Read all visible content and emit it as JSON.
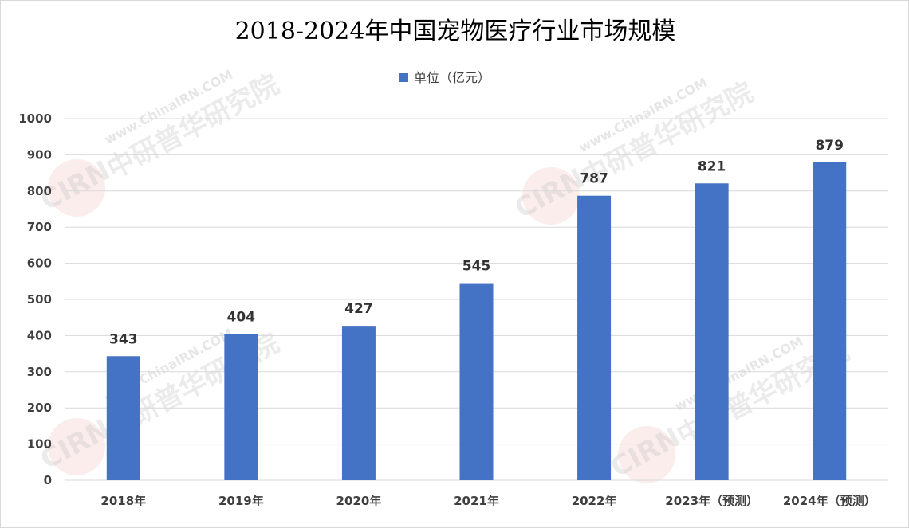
{
  "colors": {
    "bar": "#4472c4",
    "grid": "#d9d9d9",
    "text": "#404040"
  },
  "watermark": {
    "brand": "中研普华研究院",
    "url": "www.ChinaIRN.COM",
    "badge": "CIRN"
  },
  "chart_data": {
    "type": "bar",
    "title": "2018-2024年中国宠物医疗行业市场规模",
    "xlabel": "",
    "ylabel": "",
    "categories": [
      "2018年",
      "2019年",
      "2020年",
      "2021年",
      "2022年",
      "2023年（预测）",
      "2024年（预测）"
    ],
    "series": [
      {
        "name": "单位（亿元）",
        "values": [
          343,
          404,
          427,
          545,
          787,
          821,
          879
        ]
      }
    ],
    "ylim": [
      0,
      1000
    ],
    "yticks": [
      "0",
      "100",
      "200",
      "300",
      "400",
      "500",
      "600",
      "700",
      "800",
      "900",
      "1000"
    ],
    "grid": true,
    "legend_position": "top-center",
    "data_labels": [
      "343",
      "404",
      "427",
      "545",
      "787",
      "821",
      "879"
    ]
  }
}
